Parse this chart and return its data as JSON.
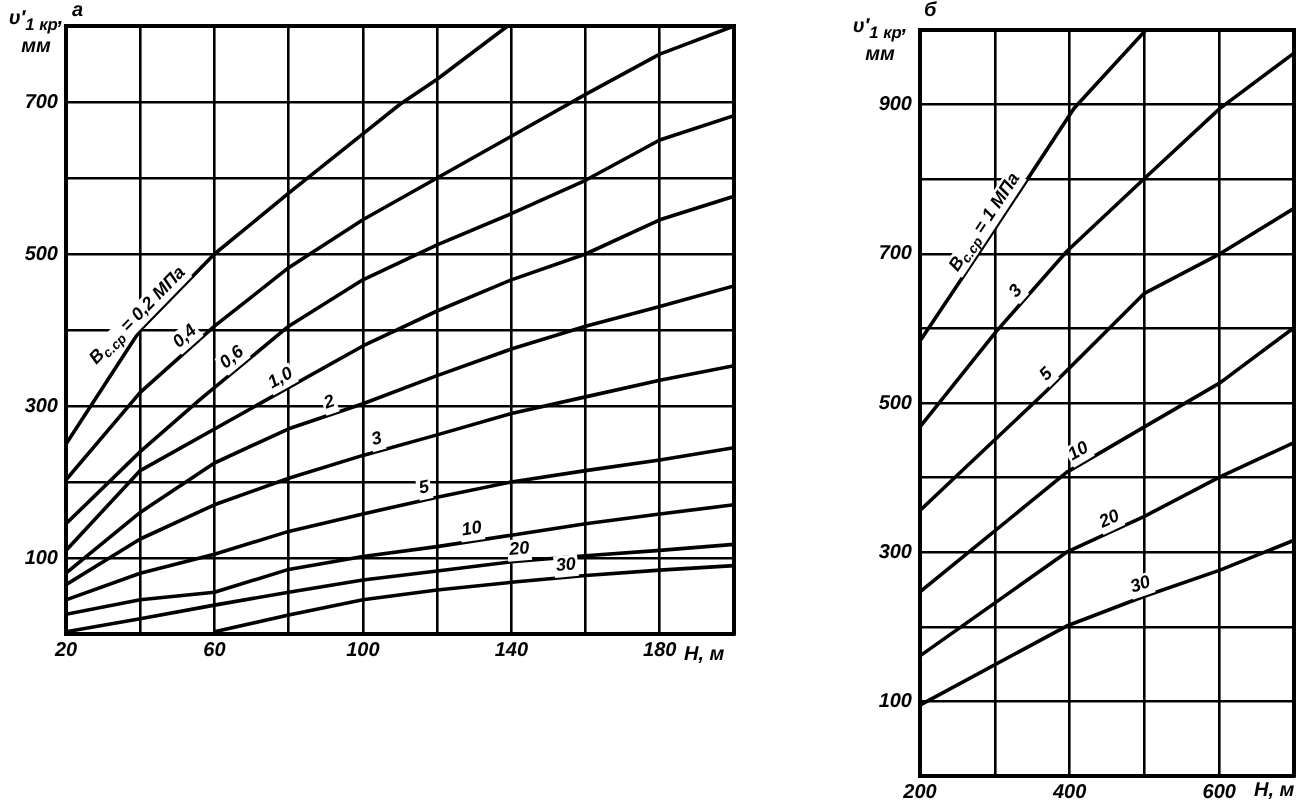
{
  "chart_data": [
    {
      "type": "line",
      "title": "а",
      "xlabel": "H, м",
      "ylabel": "υ′$_{1 кр}$, мм",
      "xlim": [
        20,
        200
      ],
      "ylim": [
        0,
        800
      ],
      "xticks": [
        20,
        {
          "value": 40,
          "label": null
        },
        60,
        {
          "value": 80,
          "label": null
        },
        100,
        {
          "value": 120,
          "label": null
        },
        140,
        {
          "value": 160,
          "label": null
        },
        180,
        {
          "value": 200,
          "label": null
        }
      ],
      "yticks": [
        {
          "value": 0,
          "label": null
        },
        100,
        {
          "value": 200,
          "label": null
        },
        300,
        {
          "value": 400,
          "label": null
        },
        500,
        {
          "value": 600,
          "label": null
        },
        700,
        {
          "value": 800,
          "label": null
        }
      ],
      "grid": true,
      "series": [
        {
          "name": "B$_{с.ср}$ = 0,2 МПа",
          "color": "#000000",
          "x": [
            20,
            30,
            40,
            60,
            80,
            100,
            110,
            120,
            139
          ],
          "values": [
            250,
            325,
            400,
            500,
            580,
            658,
            697,
            730,
            800
          ]
        },
        {
          "name": "0,4",
          "color": "#000000",
          "x": [
            20,
            40,
            60,
            80,
            100,
            120,
            140,
            160,
            180,
            200
          ],
          "values": [
            203,
            318,
            405,
            482,
            545,
            600,
            655,
            710,
            763,
            800
          ]
        },
        {
          "name": "0,6",
          "color": "#000000",
          "x": [
            20,
            40,
            56,
            80,
            100,
            120,
            140,
            160,
            180,
            200
          ],
          "values": [
            145,
            240,
            308,
            405,
            466,
            512,
            553,
            597,
            650,
            682
          ]
        },
        {
          "name": "1,0",
          "color": "#000000",
          "x": [
            20,
            40,
            74,
            100,
            120,
            140,
            160,
            180,
            200
          ],
          "values": [
            110,
            215,
            308,
            379,
            425,
            466,
            500,
            545,
            576
          ]
        },
        {
          "name": "2",
          "color": "#000000",
          "x": [
            20,
            40,
            60,
            80,
            100,
            120,
            140,
            160,
            180,
            200
          ],
          "values": [
            80,
            160,
            225,
            270,
            303,
            340,
            375,
            405,
            431,
            458
          ]
        },
        {
          "name": "3",
          "color": "#000000",
          "x": [
            20,
            40,
            60,
            80,
            100,
            120,
            140,
            160,
            180,
            200
          ],
          "values": [
            65,
            125,
            170,
            205,
            235,
            262,
            290,
            312,
            334,
            353
          ]
        },
        {
          "name": "5",
          "color": "#000000",
          "x": [
            20,
            40,
            60,
            80,
            100,
            120,
            140,
            160,
            180,
            200
          ],
          "values": [
            45,
            80,
            105,
            135,
            158,
            180,
            200,
            215,
            229,
            245
          ]
        },
        {
          "name": "10",
          "color": "#000000",
          "x": [
            20,
            40,
            60,
            80,
            100,
            120,
            140,
            160,
            180,
            200
          ],
          "values": [
            26,
            45,
            55,
            85,
            102,
            115,
            130,
            145,
            158,
            170
          ]
        },
        {
          "name": "20",
          "color": "#000000",
          "x": [
            20,
            40,
            60,
            80,
            100,
            120,
            140,
            160,
            180,
            200
          ],
          "values": [
            3,
            20,
            38,
            55,
            71,
            83,
            95,
            103,
            110,
            118
          ]
        },
        {
          "name": "30",
          "color": "#000000",
          "x": [
            60,
            80,
            100,
            120,
            140,
            160,
            180,
            200
          ],
          "values": [
            3,
            25,
            45,
            58,
            68,
            77,
            84,
            90
          ]
        }
      ]
    },
    {
      "type": "line",
      "title": "б",
      "xlabel": "H, м",
      "ylabel": "υ′$_{1 кр}$, мм",
      "xlim": [
        200,
        700
      ],
      "ylim": [
        0,
        1000
      ],
      "xticks": [
        200,
        {
          "value": 300,
          "label": null
        },
        400,
        {
          "value": 500,
          "label": null
        },
        600,
        {
          "value": 700,
          "label": null
        }
      ],
      "yticks": [
        {
          "value": 0,
          "label": null
        },
        100,
        {
          "value": 200,
          "label": null
        },
        300,
        {
          "value": 400,
          "label": null
        },
        500,
        {
          "value": 600,
          "label": null
        },
        700,
        {
          "value": 800,
          "label": null
        },
        900,
        {
          "value": 1000,
          "label": null
        }
      ],
      "grid": true,
      "series": [
        {
          "name": "B$_{с.ср}$ = 1 МПа",
          "color": "#000000",
          "x": [
            200,
            280,
            406,
            502
          ],
          "values": [
            583,
            703,
            895,
            1000
          ]
        },
        {
          "name": "3",
          "color": "#000000",
          "x": [
            200,
            302,
            396,
            500,
            601,
            700
          ],
          "values": [
            468,
            596,
            703,
            801,
            895,
            969
          ]
        },
        {
          "name": "5",
          "color": "#000000",
          "x": [
            200,
            369,
            500,
            601,
            700
          ],
          "values": [
            356,
            516,
            647,
            700,
            761
          ]
        },
        {
          "name": "10",
          "color": "#000000",
          "x": [
            200,
            396,
            500,
            601,
            700
          ],
          "values": [
            247,
            407,
            468,
            527,
            601
          ]
        },
        {
          "name": "20",
          "color": "#000000",
          "x": [
            200,
            396,
            500,
            601,
            700
          ],
          "values": [
            161,
            300,
            348,
            401,
            447
          ]
        },
        {
          "name": "30",
          "color": "#000000",
          "x": [
            200,
            396,
            500,
            601,
            700
          ],
          "values": [
            95,
            201,
            241,
            276,
            316
          ]
        }
      ]
    }
  ]
}
